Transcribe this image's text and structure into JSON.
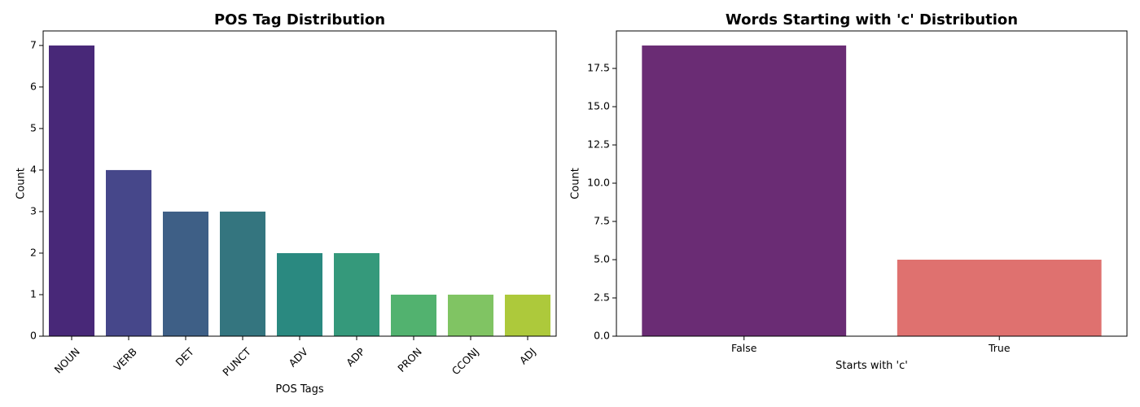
{
  "chart_data": [
    {
      "type": "bar",
      "title": "POS Tag Distribution",
      "xlabel": "POS Tags",
      "ylabel": "Count",
      "categories": [
        "NOUN",
        "VERB",
        "DET",
        "PUNCT",
        "ADV",
        "ADP",
        "PRON",
        "CCONJ",
        "ADJ"
      ],
      "values": [
        7,
        4,
        3,
        3,
        2,
        2,
        1,
        1,
        1
      ],
      "colors": [
        "#482878",
        "#46478a",
        "#3e5f86",
        "#34757f",
        "#2a8980",
        "#35997b",
        "#52b26f",
        "#80c463",
        "#adc93b"
      ],
      "ylim": [
        0,
        7.35
      ],
      "yticks": [
        0,
        1,
        2,
        3,
        4,
        5,
        6,
        7
      ],
      "ytick_labels": [
        "0",
        "1",
        "2",
        "3",
        "4",
        "5",
        "6",
        "7"
      ],
      "xtick_rotation": -45,
      "grid": false,
      "legend": "none"
    },
    {
      "type": "bar",
      "title": "Words Starting with 'c' Distribution",
      "xlabel": "Starts with 'c'",
      "ylabel": "Count",
      "categories": [
        "False",
        "True"
      ],
      "values": [
        19,
        5
      ],
      "colors": [
        "#6a2c74",
        "#df716f"
      ],
      "ylim": [
        0,
        19.95
      ],
      "yticks": [
        0,
        2.5,
        5,
        7.5,
        10,
        12.5,
        15,
        17.5
      ],
      "ytick_labels": [
        "0.0",
        "2.5",
        "5.0",
        "7.5",
        "10.0",
        "12.5",
        "15.0",
        "17.5"
      ],
      "xtick_rotation": 0,
      "grid": false,
      "legend": "none"
    }
  ]
}
